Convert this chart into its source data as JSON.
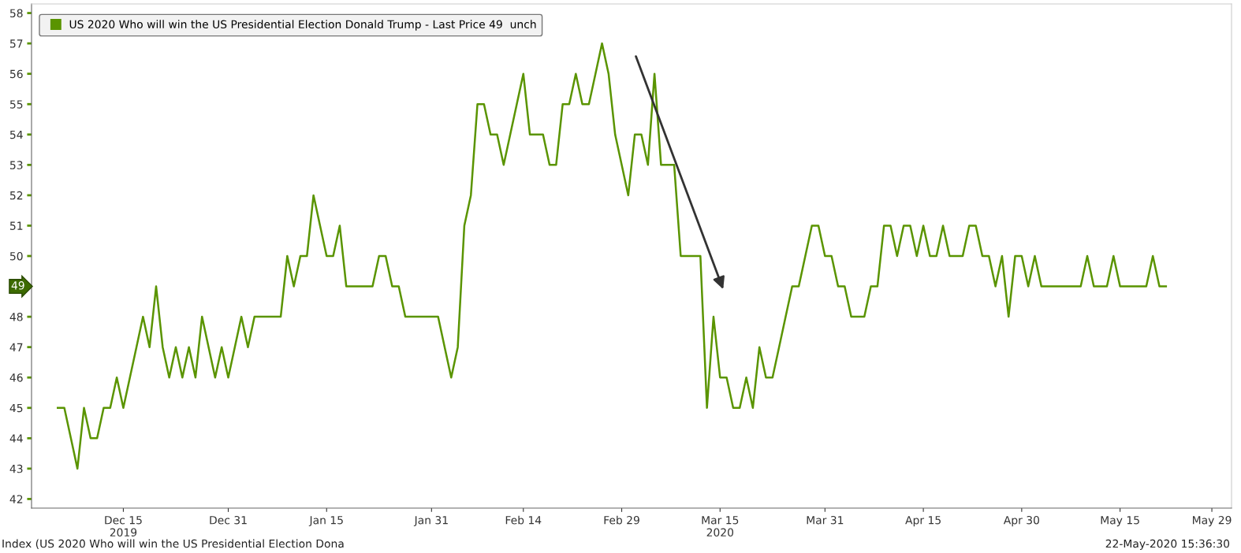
{
  "chart_data": {
    "type": "line",
    "x": [
      "2019-12-05",
      "2019-12-06",
      "2019-12-07",
      "2019-12-08",
      "2019-12-09",
      "2019-12-10",
      "2019-12-11",
      "2019-12-12",
      "2019-12-13",
      "2019-12-14",
      "2019-12-15",
      "2019-12-16",
      "2019-12-17",
      "2019-12-18",
      "2019-12-19",
      "2019-12-20",
      "2019-12-21",
      "2019-12-22",
      "2019-12-23",
      "2019-12-24",
      "2019-12-25",
      "2019-12-26",
      "2019-12-27",
      "2019-12-28",
      "2019-12-29",
      "2019-12-30",
      "2019-12-31",
      "2020-01-01",
      "2020-01-02",
      "2020-01-03",
      "2020-01-04",
      "2020-01-05",
      "2020-01-06",
      "2020-01-07",
      "2020-01-08",
      "2020-01-09",
      "2020-01-10",
      "2020-01-11",
      "2020-01-12",
      "2020-01-13",
      "2020-01-14",
      "2020-01-15",
      "2020-01-16",
      "2020-01-17",
      "2020-01-18",
      "2020-01-19",
      "2020-01-20",
      "2020-01-21",
      "2020-01-22",
      "2020-01-23",
      "2020-01-24",
      "2020-01-25",
      "2020-01-26",
      "2020-01-27",
      "2020-01-28",
      "2020-01-29",
      "2020-01-30",
      "2020-01-31",
      "2020-02-01",
      "2020-02-02",
      "2020-02-03",
      "2020-02-04",
      "2020-02-05",
      "2020-02-06",
      "2020-02-07",
      "2020-02-08",
      "2020-02-09",
      "2020-02-10",
      "2020-02-11",
      "2020-02-12",
      "2020-02-13",
      "2020-02-14",
      "2020-02-15",
      "2020-02-16",
      "2020-02-17",
      "2020-02-18",
      "2020-02-19",
      "2020-02-20",
      "2020-02-21",
      "2020-02-22",
      "2020-02-23",
      "2020-02-24",
      "2020-02-25",
      "2020-02-26",
      "2020-02-27",
      "2020-02-28",
      "2020-02-29",
      "2020-03-01",
      "2020-03-02",
      "2020-03-03",
      "2020-03-04",
      "2020-03-05",
      "2020-03-06",
      "2020-03-07",
      "2020-03-08",
      "2020-03-09",
      "2020-03-10",
      "2020-03-11",
      "2020-03-12",
      "2020-03-13",
      "2020-03-14",
      "2020-03-15",
      "2020-03-16",
      "2020-03-17",
      "2020-03-18",
      "2020-03-19",
      "2020-03-20",
      "2020-03-21",
      "2020-03-22",
      "2020-03-23",
      "2020-03-24",
      "2020-03-25",
      "2020-03-26",
      "2020-03-27",
      "2020-03-28",
      "2020-03-29",
      "2020-03-30",
      "2020-03-31",
      "2020-04-01",
      "2020-04-02",
      "2020-04-03",
      "2020-04-04",
      "2020-04-05",
      "2020-04-06",
      "2020-04-07",
      "2020-04-08",
      "2020-04-09",
      "2020-04-10",
      "2020-04-11",
      "2020-04-12",
      "2020-04-13",
      "2020-04-14",
      "2020-04-15",
      "2020-04-16",
      "2020-04-17",
      "2020-04-18",
      "2020-04-19",
      "2020-04-20",
      "2020-04-21",
      "2020-04-22",
      "2020-04-23",
      "2020-04-24",
      "2020-04-25",
      "2020-04-26",
      "2020-04-27",
      "2020-04-28",
      "2020-04-29",
      "2020-04-30",
      "2020-05-01",
      "2020-05-02",
      "2020-05-03",
      "2020-05-04",
      "2020-05-05",
      "2020-05-06",
      "2020-05-07",
      "2020-05-08",
      "2020-05-09",
      "2020-05-10",
      "2020-05-11",
      "2020-05-12",
      "2020-05-13",
      "2020-05-14",
      "2020-05-15",
      "2020-05-16",
      "2020-05-17",
      "2020-05-18",
      "2020-05-19",
      "2020-05-20",
      "2020-05-21",
      "2020-05-22"
    ],
    "series": [
      {
        "name": "US 2020 Who will win the US Presidential Election Donald Trump - Last Price 49  unch",
        "color": "#5a9400",
        "values": [
          45,
          45,
          44,
          43,
          45,
          44,
          44,
          45,
          45,
          46,
          45,
          46,
          47,
          48,
          47,
          49,
          47,
          46,
          47,
          46,
          47,
          46,
          48,
          47,
          46,
          47,
          46,
          47,
          48,
          47,
          48,
          48,
          48,
          48,
          48,
          50,
          49,
          50,
          50,
          52,
          51,
          50,
          50,
          51,
          49,
          49,
          49,
          49,
          49,
          50,
          50,
          49,
          49,
          48,
          48,
          48,
          48,
          48,
          48,
          47,
          46,
          47,
          51,
          52,
          55,
          55,
          54,
          54,
          53,
          54,
          55,
          56,
          54,
          54,
          54,
          53,
          53,
          55,
          55,
          56,
          55,
          55,
          56,
          57,
          56,
          54,
          53,
          52,
          54,
          54,
          53,
          56,
          53,
          53,
          53,
          50,
          50,
          50,
          50,
          45,
          48,
          46,
          46,
          45,
          45,
          46,
          45,
          47,
          46,
          46,
          47,
          48,
          49,
          49,
          50,
          51,
          51,
          50,
          50,
          49,
          49,
          48,
          48,
          48,
          49,
          49,
          51,
          51,
          50,
          51,
          51,
          50,
          51,
          50,
          50,
          51,
          50,
          50,
          50,
          51,
          51,
          50,
          50,
          49,
          50,
          48,
          50,
          50,
          49,
          50,
          49,
          49,
          49,
          49,
          49,
          49,
          49,
          50,
          49,
          49,
          49,
          50,
          49,
          49,
          49,
          49,
          49,
          50,
          49,
          49
        ]
      }
    ],
    "xlim": [
      "2019-12-01",
      "2020-06-01"
    ],
    "xticks": [
      {
        "value": "2019-12-15",
        "label": "Dec 15\n2019"
      },
      {
        "value": "2019-12-31",
        "label": "Dec 31"
      },
      {
        "value": "2020-01-15",
        "label": "Jan 15"
      },
      {
        "value": "2020-01-31",
        "label": "Jan 31"
      },
      {
        "value": "2020-02-14",
        "label": "Feb 14"
      },
      {
        "value": "2020-02-29",
        "label": "Feb 29"
      },
      {
        "value": "2020-03-15",
        "label": "Mar 15\n2020"
      },
      {
        "value": "2020-03-31",
        "label": "Mar 31"
      },
      {
        "value": "2020-04-15",
        "label": "Apr 15"
      },
      {
        "value": "2020-04-30",
        "label": "Apr 30"
      },
      {
        "value": "2020-05-15",
        "label": "May 15"
      },
      {
        "value": "2020-05-29",
        "label": "May 29"
      }
    ],
    "ylim": [
      41.7,
      58.3
    ],
    "yticks": [
      42,
      43,
      44,
      45,
      46,
      47,
      48,
      49,
      50,
      51,
      52,
      53,
      54,
      55,
      56,
      57,
      58
    ],
    "legend": "top left",
    "grid": false,
    "marker": "none",
    "line_style": "solid",
    "annotations": [
      "49",
      "Index (US 2020 Who will win the US Presidential Election Dona",
      "22-May-2020 15:36:30"
    ]
  }
}
